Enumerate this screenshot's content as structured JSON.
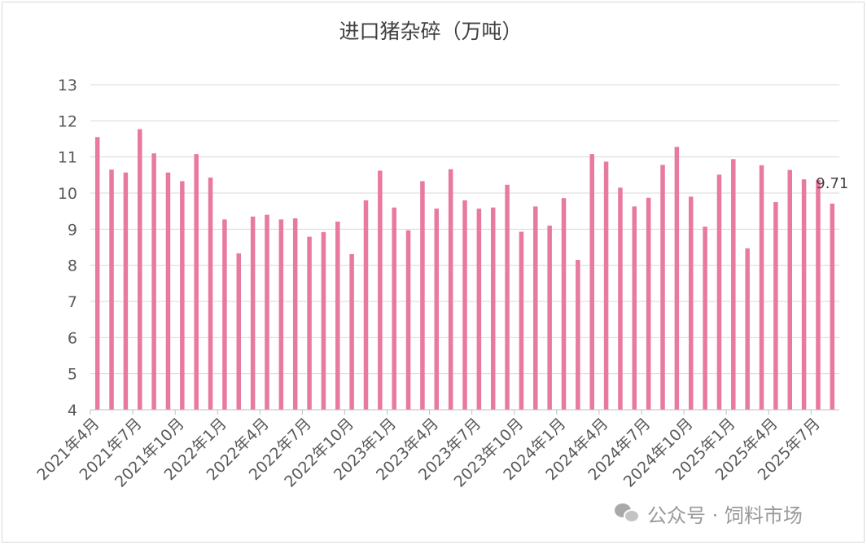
{
  "chart_data": {
    "type": "bar",
    "title": "进口猪杂碎（万吨）",
    "ylim": [
      4,
      13
    ],
    "yticks": [
      4,
      5,
      6,
      7,
      8,
      9,
      10,
      11,
      12,
      13
    ],
    "grid": true,
    "bar_color": "#e8799f",
    "x_tick_labels": [
      "2021年4月",
      "2021年7月",
      "2021年10月",
      "2022年1月",
      "2022年4月",
      "2022年7月",
      "2022年10月",
      "2023年1月",
      "2023年4月",
      "2023年7月",
      "2023年10月",
      "2024年1月",
      "2024年4月",
      "2024年7月",
      "2024年10月",
      "2025年1月",
      "2025年4月",
      "2025年7月"
    ],
    "categories": [
      "2021年4月",
      "2021年5月",
      "2021年6月",
      "2021年7月",
      "2021年8月",
      "2021年9月",
      "2021年10月",
      "2021年11月",
      "2021年12月",
      "2022年1月",
      "2022年2月",
      "2022年3月",
      "2022年4月",
      "2022年5月",
      "2022年6月",
      "2022年7月",
      "2022年8月",
      "2022年9月",
      "2022年10月",
      "2022年11月",
      "2022年12月",
      "2023年1月",
      "2023年2月",
      "2023年3月",
      "2023年4月",
      "2023年5月",
      "2023年6月",
      "2023年7月",
      "2023年8月",
      "2023年9月",
      "2023年10月",
      "2023年11月",
      "2023年12月",
      "2024年1月",
      "2024年2月",
      "2024年3月",
      "2024年4月",
      "2024年5月",
      "2024年6月",
      "2024年7月",
      "2024年8月",
      "2024年9月",
      "2024年10月",
      "2024年11月",
      "2024年12月",
      "2025年1月",
      "2025年2月",
      "2025年3月",
      "2025年4月",
      "2025年5月",
      "2025年6月",
      "2025年7月",
      "2025年8月"
    ],
    "values": [
      11.55,
      10.65,
      10.57,
      11.77,
      11.1,
      10.57,
      10.33,
      11.08,
      10.43,
      9.27,
      8.33,
      9.35,
      9.4,
      9.27,
      9.3,
      8.79,
      8.92,
      9.21,
      8.31,
      9.8,
      10.62,
      9.6,
      8.97,
      10.33,
      9.57,
      10.66,
      9.8,
      9.57,
      9.6,
      10.23,
      8.93,
      9.63,
      9.1,
      9.86,
      8.15,
      11.08,
      10.87,
      10.15,
      9.63,
      9.87,
      10.78,
      11.28,
      9.9,
      9.07,
      10.51,
      10.94,
      8.47,
      10.77,
      9.75,
      10.64,
      10.38,
      10.36,
      9.71
    ],
    "data_labels": [
      {
        "index": 52,
        "text": "9.71"
      }
    ]
  },
  "watermark": {
    "icon": "wechat-icon",
    "text": "公众号 · 饲料市场"
  }
}
